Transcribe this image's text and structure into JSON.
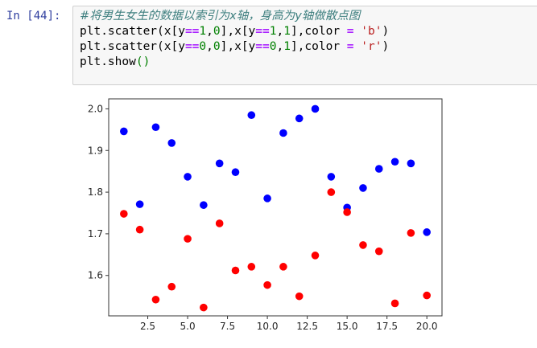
{
  "cell": {
    "prompt": "In [44]:",
    "code_lines": [
      {
        "comment": "#将男生女生的数据以索引为x轴，身高为y轴做散点图"
      },
      {
        "a": "plt.scatter(x[y",
        "op": "==",
        "n1": "1",
        "b": ",",
        "n2": "0",
        "c": "],x[y",
        "op2": "==",
        "n3": "1",
        "d": ",",
        "n4": "1",
        "e": "],color ",
        "eq": "=",
        "s": " 'b'",
        "f": ")"
      },
      {
        "a": "plt.scatter(x[y",
        "op": "==",
        "n1": "0",
        "b": ",",
        "n2": "0",
        "c": "],x[y",
        "op2": "==",
        "n3": "0",
        "d": ",",
        "n4": "1",
        "e": "],color ",
        "eq": "=",
        "s": " 'r'",
        "f": ")"
      },
      {
        "a": "plt.show",
        "paren": "()"
      }
    ]
  },
  "chart_data": {
    "type": "scatter",
    "title": "",
    "xlabel": "",
    "ylabel": "",
    "xlim": [
      0.05,
      20.95
    ],
    "ylim": [
      1.503,
      2.024
    ],
    "x_ticks": [
      "2.5",
      "5.0",
      "7.5",
      "10.0",
      "12.5",
      "15.0",
      "17.5",
      "20.0"
    ],
    "x_tick_values": [
      2.5,
      5.0,
      7.5,
      10.0,
      12.5,
      15.0,
      17.5,
      20.0
    ],
    "y_ticks": [
      "1.6",
      "1.7",
      "1.8",
      "1.9",
      "2.0"
    ],
    "y_tick_values": [
      1.6,
      1.7,
      1.8,
      1.9,
      2.0
    ],
    "grid": false,
    "legend": null,
    "series": [
      {
        "name": "y==1",
        "color": "#0000ff",
        "x": [
          1,
          2,
          3,
          4,
          5,
          6,
          7,
          8,
          9,
          10,
          11,
          12,
          13,
          14,
          15,
          16,
          17,
          18,
          19,
          20
        ],
        "y": [
          1.946,
          1.771,
          1.956,
          1.918,
          1.837,
          1.769,
          1.869,
          1.848,
          1.985,
          1.785,
          1.942,
          1.977,
          2.0,
          1.837,
          1.763,
          1.81,
          1.856,
          1.873,
          1.869,
          1.704
        ]
      },
      {
        "name": "y==0",
        "color": "#ff0000",
        "x": [
          1,
          2,
          3,
          4,
          5,
          6,
          7,
          8,
          9,
          10,
          11,
          12,
          13,
          14,
          15,
          16,
          17,
          18,
          19,
          20
        ],
        "y": [
          1.748,
          1.71,
          1.542,
          1.573,
          1.688,
          1.523,
          1.725,
          1.612,
          1.621,
          1.577,
          1.621,
          1.55,
          1.648,
          1.8,
          1.752,
          1.673,
          1.658,
          1.533,
          1.702,
          1.552
        ]
      }
    ]
  }
}
